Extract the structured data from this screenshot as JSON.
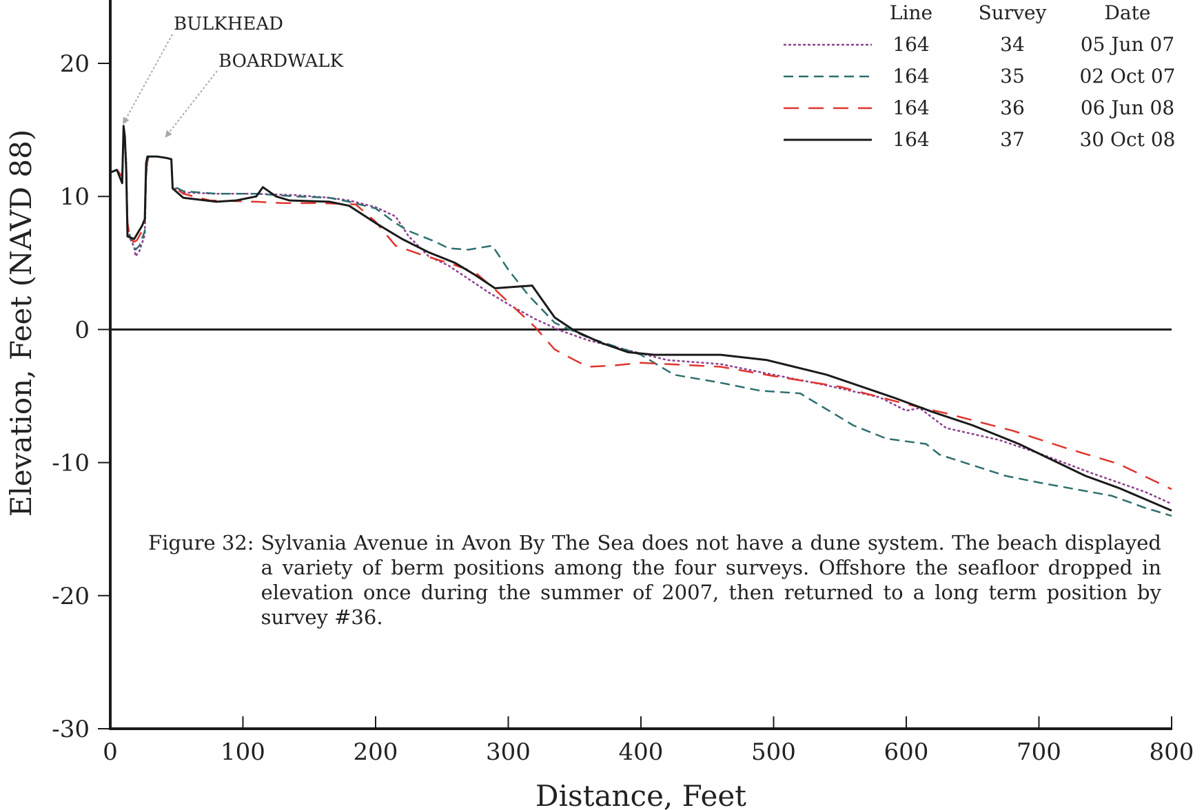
{
  "chart_data": {
    "type": "line",
    "xlabel": "Distance, Feet",
    "ylabel": "Elevation, Feet (NAVD 88)",
    "xlim": [
      0,
      800
    ],
    "ylim": [
      -30,
      25
    ],
    "xticks": [
      0,
      100,
      200,
      300,
      400,
      500,
      600,
      700,
      800
    ],
    "yticks": [
      -30,
      -20,
      -10,
      0,
      10,
      20
    ],
    "grid": false,
    "zero_line": true,
    "legend_position": "top-right",
    "legend_headers": [
      "Line",
      "Survey",
      "Date"
    ],
    "annotations": [
      {
        "text": "BULKHEAD",
        "x": 10,
        "y": 15.5
      },
      {
        "text": "BOARDWALK",
        "x": 42,
        "y": 14.5
      }
    ],
    "series": [
      {
        "line": "164",
        "survey": "34",
        "date": "05 Jun 07",
        "style": "dotted",
        "color": "#8e3f8e",
        "points": [
          [
            0,
            11.8
          ],
          [
            5,
            12
          ],
          [
            9,
            11.5
          ],
          [
            10,
            14.9
          ],
          [
            11,
            14
          ],
          [
            12,
            12.8
          ],
          [
            13,
            8
          ],
          [
            15,
            6.8
          ],
          [
            18,
            6.2
          ],
          [
            19,
            5.5
          ],
          [
            22,
            5.9
          ],
          [
            26,
            7.1
          ],
          [
            27,
            11.5
          ],
          [
            28,
            12.6
          ],
          [
            29,
            13
          ],
          [
            35,
            13
          ],
          [
            42,
            12.9
          ],
          [
            46,
            12.8
          ],
          [
            47,
            10.7
          ],
          [
            55,
            10.3
          ],
          [
            80,
            10.2
          ],
          [
            110,
            10.2
          ],
          [
            140,
            10.1
          ],
          [
            165,
            9.9
          ],
          [
            180,
            9.7
          ],
          [
            200,
            9.2
          ],
          [
            215,
            8.5
          ],
          [
            225,
            7
          ],
          [
            240,
            5.5
          ],
          [
            255,
            4.8
          ],
          [
            270,
            3.8
          ],
          [
            285,
            2.8
          ],
          [
            300,
            1.9
          ],
          [
            320,
            0.8
          ],
          [
            340,
            -0.1
          ],
          [
            360,
            -0.8
          ],
          [
            380,
            -1.3
          ],
          [
            400,
            -1.8
          ],
          [
            420,
            -2.3
          ],
          [
            460,
            -2.6
          ],
          [
            500,
            -3.4
          ],
          [
            540,
            -4.2
          ],
          [
            580,
            -5.1
          ],
          [
            600,
            -6.1
          ],
          [
            610,
            -5.9
          ],
          [
            630,
            -7.4
          ],
          [
            670,
            -8.3
          ],
          [
            700,
            -9.3
          ],
          [
            740,
            -10.8
          ],
          [
            780,
            -12.2
          ],
          [
            800,
            -13.1
          ]
        ]
      },
      {
        "line": "164",
        "survey": "35",
        "date": "02 Oct 07",
        "style": "dashed",
        "color": "#2e6e6e",
        "points": [
          [
            0,
            11.8
          ],
          [
            5,
            12
          ],
          [
            9,
            11.5
          ],
          [
            10,
            15
          ],
          [
            11,
            14
          ],
          [
            12,
            12.5
          ],
          [
            13,
            8
          ],
          [
            15,
            6.9
          ],
          [
            18,
            6.5
          ],
          [
            19,
            6
          ],
          [
            22,
            6.3
          ],
          [
            26,
            7.4
          ],
          [
            27,
            11.5
          ],
          [
            28,
            12.6
          ],
          [
            29,
            13
          ],
          [
            35,
            13
          ],
          [
            42,
            12.9
          ],
          [
            46,
            12.8
          ],
          [
            47,
            10.8
          ],
          [
            55,
            10.4
          ],
          [
            80,
            10.2
          ],
          [
            110,
            10.2
          ],
          [
            140,
            10
          ],
          [
            165,
            9.9
          ],
          [
            180,
            9.6
          ],
          [
            200,
            9.1
          ],
          [
            215,
            8
          ],
          [
            225,
            7.4
          ],
          [
            245,
            6.6
          ],
          [
            255,
            6.1
          ],
          [
            270,
            6
          ],
          [
            288,
            6.3
          ],
          [
            300,
            4.5
          ],
          [
            315,
            2.6
          ],
          [
            335,
            0.5
          ],
          [
            360,
            -0.6
          ],
          [
            400,
            -1.9
          ],
          [
            425,
            -3.4
          ],
          [
            460,
            -4
          ],
          [
            490,
            -4.6
          ],
          [
            520,
            -4.8
          ],
          [
            560,
            -7.2
          ],
          [
            585,
            -8.2
          ],
          [
            615,
            -8.6
          ],
          [
            625,
            -9.4
          ],
          [
            650,
            -10.2
          ],
          [
            675,
            -11
          ],
          [
            700,
            -11.5
          ],
          [
            755,
            -12.5
          ],
          [
            780,
            -13.4
          ],
          [
            800,
            -14
          ]
        ]
      },
      {
        "line": "164",
        "survey": "36",
        "date": "06 Jun 08",
        "style": "dashed",
        "color": "#e0342d",
        "points": [
          [
            0,
            11.8
          ],
          [
            5,
            12
          ],
          [
            9,
            11.5
          ],
          [
            10,
            15
          ],
          [
            11,
            14
          ],
          [
            12,
            12.5
          ],
          [
            13,
            8
          ],
          [
            15,
            6.8
          ],
          [
            18,
            6.6
          ],
          [
            20,
            6.7
          ],
          [
            24,
            7.4
          ],
          [
            26,
            8.1
          ],
          [
            27,
            11.8
          ],
          [
            28,
            12.7
          ],
          [
            29,
            13
          ],
          [
            35,
            13
          ],
          [
            42,
            12.9
          ],
          [
            46,
            12.8
          ],
          [
            47,
            10.8
          ],
          [
            55,
            10.2
          ],
          [
            75,
            9.7
          ],
          [
            110,
            9.6
          ],
          [
            130,
            9.5
          ],
          [
            160,
            9.5
          ],
          [
            185,
            9.4
          ],
          [
            200,
            8.1
          ],
          [
            215,
            6.3
          ],
          [
            235,
            5.6
          ],
          [
            255,
            5
          ],
          [
            275,
            4.3
          ],
          [
            290,
            3
          ],
          [
            305,
            1.6
          ],
          [
            320,
            0.2
          ],
          [
            335,
            -1.5
          ],
          [
            350,
            -2.3
          ],
          [
            360,
            -2.8
          ],
          [
            380,
            -2.7
          ],
          [
            400,
            -2.5
          ],
          [
            420,
            -2.6
          ],
          [
            460,
            -2.8
          ],
          [
            500,
            -3.5
          ],
          [
            550,
            -4.3
          ],
          [
            600,
            -5.6
          ],
          [
            630,
            -6.3
          ],
          [
            680,
            -7.6
          ],
          [
            720,
            -8.9
          ],
          [
            760,
            -10.1
          ],
          [
            800,
            -12
          ]
        ]
      },
      {
        "line": "164",
        "survey": "37",
        "date": "30 Oct 08",
        "style": "solid",
        "color": "#1a1a1a",
        "points": [
          [
            0,
            11.8
          ],
          [
            5,
            12
          ],
          [
            9,
            11
          ],
          [
            10,
            15.3
          ],
          [
            11,
            14.5
          ],
          [
            12,
            12
          ],
          [
            13,
            7
          ],
          [
            18,
            6.8
          ],
          [
            24,
            7.8
          ],
          [
            26,
            8.3
          ],
          [
            27,
            12.5
          ],
          [
            28,
            13
          ],
          [
            35,
            13
          ],
          [
            42,
            12.9
          ],
          [
            46,
            12.8
          ],
          [
            47,
            10.6
          ],
          [
            55,
            9.9
          ],
          [
            80,
            9.6
          ],
          [
            95,
            9.7
          ],
          [
            110,
            10
          ],
          [
            115,
            10.7
          ],
          [
            125,
            10
          ],
          [
            135,
            9.7
          ],
          [
            165,
            9.6
          ],
          [
            180,
            9.3
          ],
          [
            200,
            8
          ],
          [
            220,
            6.8
          ],
          [
            240,
            5.8
          ],
          [
            260,
            5
          ],
          [
            275,
            4.1
          ],
          [
            290,
            3.1
          ],
          [
            318,
            3.3
          ],
          [
            335,
            0.9
          ],
          [
            350,
            -0.1
          ],
          [
            370,
            -1
          ],
          [
            390,
            -1.7
          ],
          [
            410,
            -1.9
          ],
          [
            460,
            -1.9
          ],
          [
            495,
            -2.3
          ],
          [
            540,
            -3.4
          ],
          [
            590,
            -5.1
          ],
          [
            620,
            -6.2
          ],
          [
            650,
            -7.2
          ],
          [
            685,
            -8.6
          ],
          [
            735,
            -11
          ],
          [
            760,
            -11.9
          ],
          [
            800,
            -13.6
          ]
        ]
      }
    ]
  },
  "figure_caption": {
    "label": "Figure 32:",
    "text": "Sylvania Avenue in Avon By The Sea  does not have a dune system.  The beach displayed a variety of berm positions among the four surveys.  Offshore the seafloor dropped in elevation once during the summer of 2007, then returned to a long term position by survey #36."
  }
}
